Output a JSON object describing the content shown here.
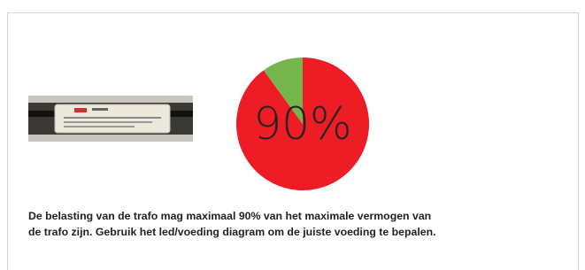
{
  "chart_data": {
    "type": "pie",
    "values": [
      90,
      10
    ],
    "colors": [
      "#ee1c24",
      "#76b54b"
    ],
    "center_label": "90%"
  },
  "caption": [
    "De belasting van de trafo mag maximaal 90% van het maximale vermogen van",
    "de trafo zijn. Gebruik het led/voeding diagram om de juiste voeding te bepalen."
  ]
}
